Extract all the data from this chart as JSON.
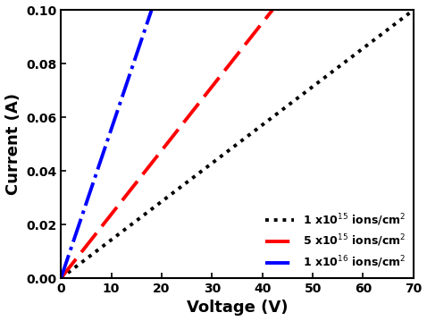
{
  "title": "",
  "xlabel": "Voltage (V)",
  "ylabel": "Current (A)",
  "xlim": [
    0,
    70
  ],
  "ylim": [
    0,
    0.1
  ],
  "xticks": [
    0,
    10,
    20,
    30,
    40,
    50,
    60,
    70
  ],
  "yticks": [
    0.0,
    0.02,
    0.04,
    0.06,
    0.08,
    0.1
  ],
  "series": [
    {
      "label": "1 x10$^{15}$ ions/cm$^2$",
      "slope": 0.001428,
      "color": "black",
      "linestyle": "dotted",
      "linewidth": 2.8,
      "x_max": 70
    },
    {
      "label": "5 x10$^{15}$ ions/cm$^2$",
      "slope": 0.00238,
      "color": "red",
      "linestyle": "dashed",
      "linewidth": 2.8,
      "x_max": 42
    },
    {
      "label": "1 x10$^{16}$ ions/cm$^2$",
      "slope": 0.005556,
      "color": "blue",
      "linestyle": "dashdot",
      "linewidth": 2.8,
      "x_max": 18
    }
  ],
  "legend_loc": "lower right",
  "legend_fontsize": 9,
  "axis_label_fontsize": 13,
  "tick_fontsize": 10,
  "tick_label_fontweight": "bold",
  "axis_label_fontweight": "bold",
  "figsize": [
    4.78,
    3.59
  ],
  "dpi": 100
}
